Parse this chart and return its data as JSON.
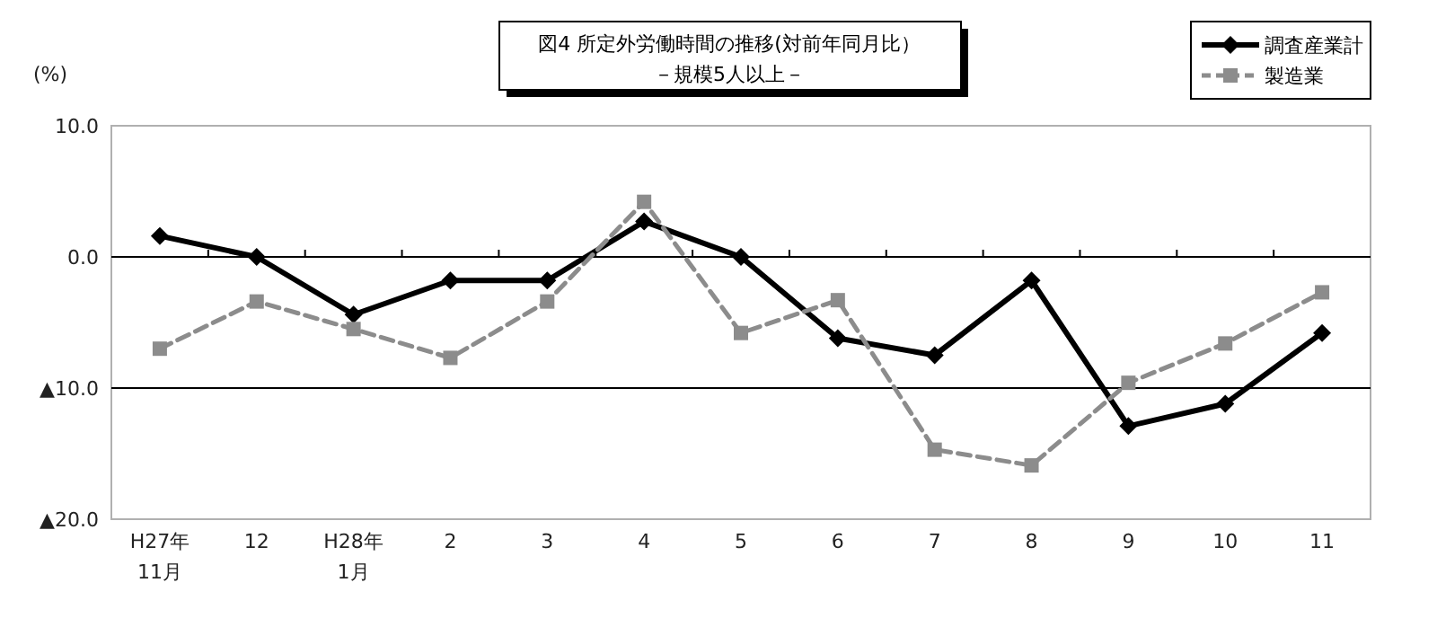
{
  "chart_data": {
    "type": "line",
    "title": "図4  所定外労働時間の推移(対前年同月比）",
    "subtitle": "－規模5人以上－",
    "ylabel": "(%)",
    "categories": [
      "H27年\n11月",
      "12",
      "H28年\n1月",
      "2",
      "3",
      "4",
      "5",
      "6",
      "7",
      "8",
      "9",
      "10",
      "11"
    ],
    "ylim": [
      -20,
      10
    ],
    "yticks": [
      {
        "value": 10,
        "label": "10.0"
      },
      {
        "value": 0,
        "label": "0.0"
      },
      {
        "value": -10,
        "label": "▲10.0"
      },
      {
        "value": -20,
        "label": "▲20.0"
      }
    ],
    "grid": "y",
    "legend": "top right",
    "series": [
      {
        "name": "調査産業計",
        "color": "#000000",
        "marker": "diamond",
        "line_style": "solid",
        "values": [
          1.6,
          0.0,
          -4.4,
          -1.8,
          -1.8,
          2.7,
          0.0,
          -6.2,
          -7.5,
          -1.8,
          -12.9,
          -11.2,
          -5.8
        ]
      },
      {
        "name": "製造業",
        "color": "#8c8c8c",
        "marker": "square",
        "line_style": "dashed",
        "values": [
          -7.0,
          -3.4,
          -5.5,
          -7.7,
          -3.4,
          4.2,
          -5.8,
          -3.3,
          -14.7,
          -15.9,
          -9.6,
          -6.6,
          -2.7
        ]
      }
    ]
  }
}
